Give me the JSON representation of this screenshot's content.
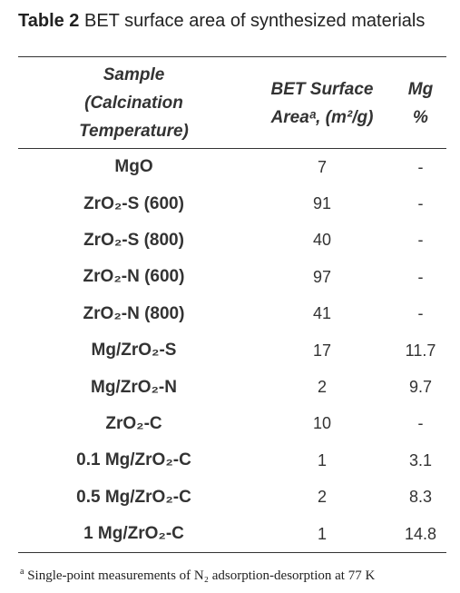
{
  "table": {
    "label": "Table 2",
    "caption": "BET surface area of synthesized materials",
    "columns": [
      "Sample (Calcination Temperature)",
      "BET Surface Areaᵃ, (m²/g)",
      "Mg %"
    ],
    "rows": [
      [
        "MgO",
        7,
        "-"
      ],
      [
        "ZrO₂-S (600)",
        91,
        "-"
      ],
      [
        "ZrO₂-S (800)",
        40,
        "-"
      ],
      [
        "ZrO₂-N (600)",
        97,
        "-"
      ],
      [
        "ZrO₂-N (800)",
        41,
        "-"
      ],
      [
        "Mg/ZrO₂-S",
        17,
        11.7
      ],
      [
        "Mg/ZrO₂-N",
        2,
        9.7
      ],
      [
        "ZrO₂-C",
        10,
        "-"
      ],
      [
        "0.1 Mg/ZrO₂-C",
        1,
        3.1
      ],
      [
        "0.5 Mg/ZrO₂-C",
        2,
        8.3
      ],
      [
        "1 Mg/ZrO₂-C",
        1,
        14.8
      ]
    ]
  },
  "footnote": {
    "marker": "a",
    "text": "Single-point measurements of N₂ adsorption-desorption at 77 K"
  }
}
